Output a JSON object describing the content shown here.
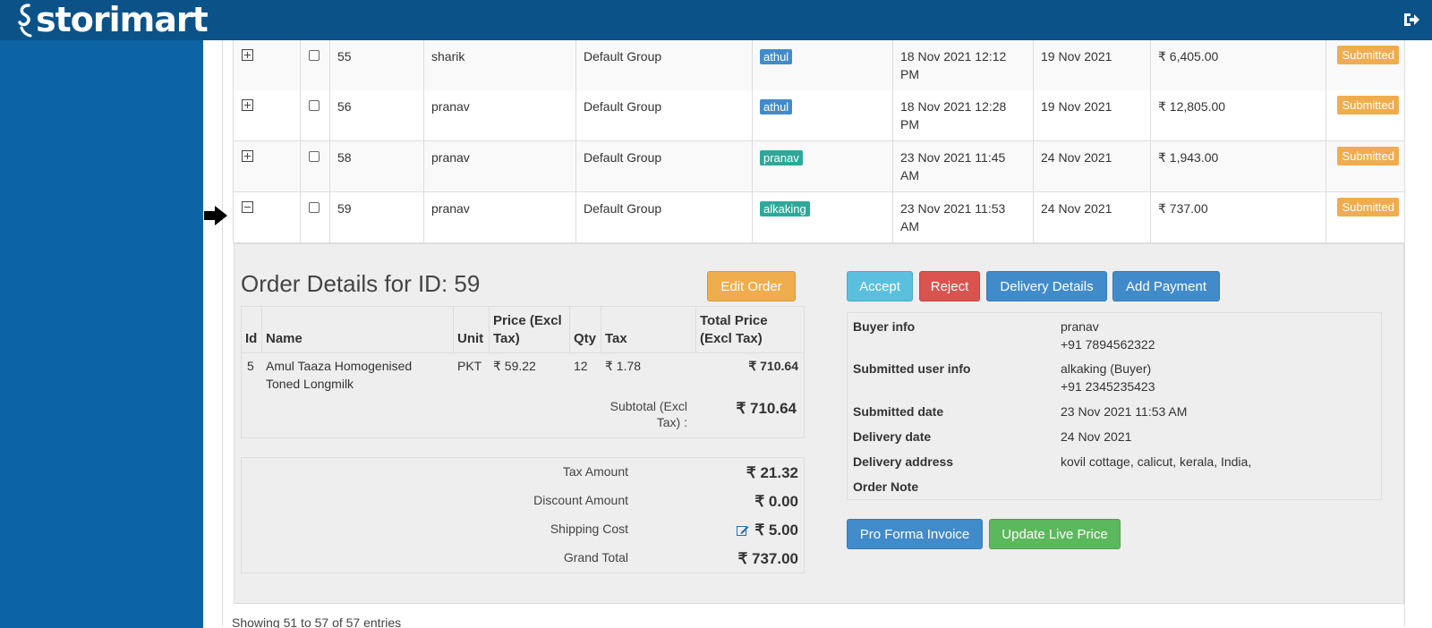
{
  "app": {
    "brand": "storimart"
  },
  "rows": [
    {
      "id": "55",
      "name": "sharik",
      "group": "Default Group",
      "user": "athul",
      "user_color": "#428bca",
      "created_line1": "18 Nov 2021 12:12",
      "created_line2": "PM",
      "delivery": "19 Nov 2021",
      "amount": "₹ 6,405.00",
      "status": "Submitted",
      "expanded": false
    },
    {
      "id": "56",
      "name": "pranav",
      "group": "Default Group",
      "user": "athul",
      "user_color": "#428bca",
      "created_line1": "18 Nov 2021 12:28",
      "created_line2": "PM",
      "delivery": "19 Nov 2021",
      "amount": "₹ 12,805.00",
      "status": "Submitted",
      "expanded": false
    },
    {
      "id": "58",
      "name": "pranav",
      "group": "Default Group",
      "user": "pranav",
      "user_color": "#2fa89a",
      "created_line1": "23 Nov 2021 11:45",
      "created_line2": "AM",
      "delivery": "24 Nov 2021",
      "amount": "₹ 1,943.00",
      "status": "Submitted",
      "expanded": false
    },
    {
      "id": "59",
      "name": "pranav",
      "group": "Default Group",
      "user": "alkaking",
      "user_color": "#2fa89a",
      "created_line1": "23 Nov 2021 11:53",
      "created_line2": "AM",
      "delivery": "24 Nov 2021",
      "amount": "₹ 737.00",
      "status": "Submitted",
      "expanded": true
    }
  ],
  "details": {
    "title": "Order Details for ID: 59",
    "edit_order": "Edit Order",
    "accept": "Accept",
    "reject": "Reject",
    "delivery_details": "Delivery Details",
    "add_payment": "Add Payment",
    "pro_forma": "Pro Forma Invoice",
    "update_price": "Update Live Price",
    "item_headers": {
      "id": "Id",
      "name": "Name",
      "unit": "Unit",
      "price": "Price (Excl Tax)",
      "qty": "Qty",
      "tax": "Tax",
      "total": "Total Price (Excl Tax)"
    },
    "items": [
      {
        "id": "5",
        "name_line1": "Amul Taaza Homogenised",
        "name_line2": "Toned Longmilk",
        "unit": "PKT",
        "price": "₹ 59.22",
        "qty": "12",
        "tax": "₹ 1.78",
        "total": "₹ 710.64"
      }
    ],
    "subtotal_label_1": "Subtotal (Excl",
    "subtotal_label_2": "Tax) :",
    "subtotal_value": "₹ 710.64",
    "tax_amount_label": "Tax Amount",
    "tax_amount_value": "₹ 21.32",
    "discount_label": "Discount Amount",
    "discount_value": "₹ 0.00",
    "shipping_label": "Shipping Cost",
    "shipping_value": "₹ 5.00",
    "grand_total_label": "Grand Total",
    "grand_total_value": "₹ 737.00",
    "info": {
      "buyer_label": "Buyer info",
      "buyer_name": "pranav",
      "buyer_phone": "+91 7894562322",
      "submitted_user_label": "Submitted user info",
      "submitted_user_name": "alkaking (Buyer)",
      "submitted_user_phone": "+91 2345235423",
      "submitted_date_label": "Submitted date",
      "submitted_date": "23 Nov 2021 11:53 AM",
      "delivery_date_label": "Delivery date",
      "delivery_date": "24 Nov 2021",
      "delivery_address_label": "Delivery address",
      "delivery_address": "kovil cottage, calicut, kerala, India,",
      "order_note_label": "Order Note"
    }
  },
  "footer": {
    "entries": "Showing 51 to 57 of 57 entries"
  },
  "icons": {
    "logout": "logout-icon",
    "arrow": "arrow-right-icon",
    "edit": "edit-icon"
  }
}
